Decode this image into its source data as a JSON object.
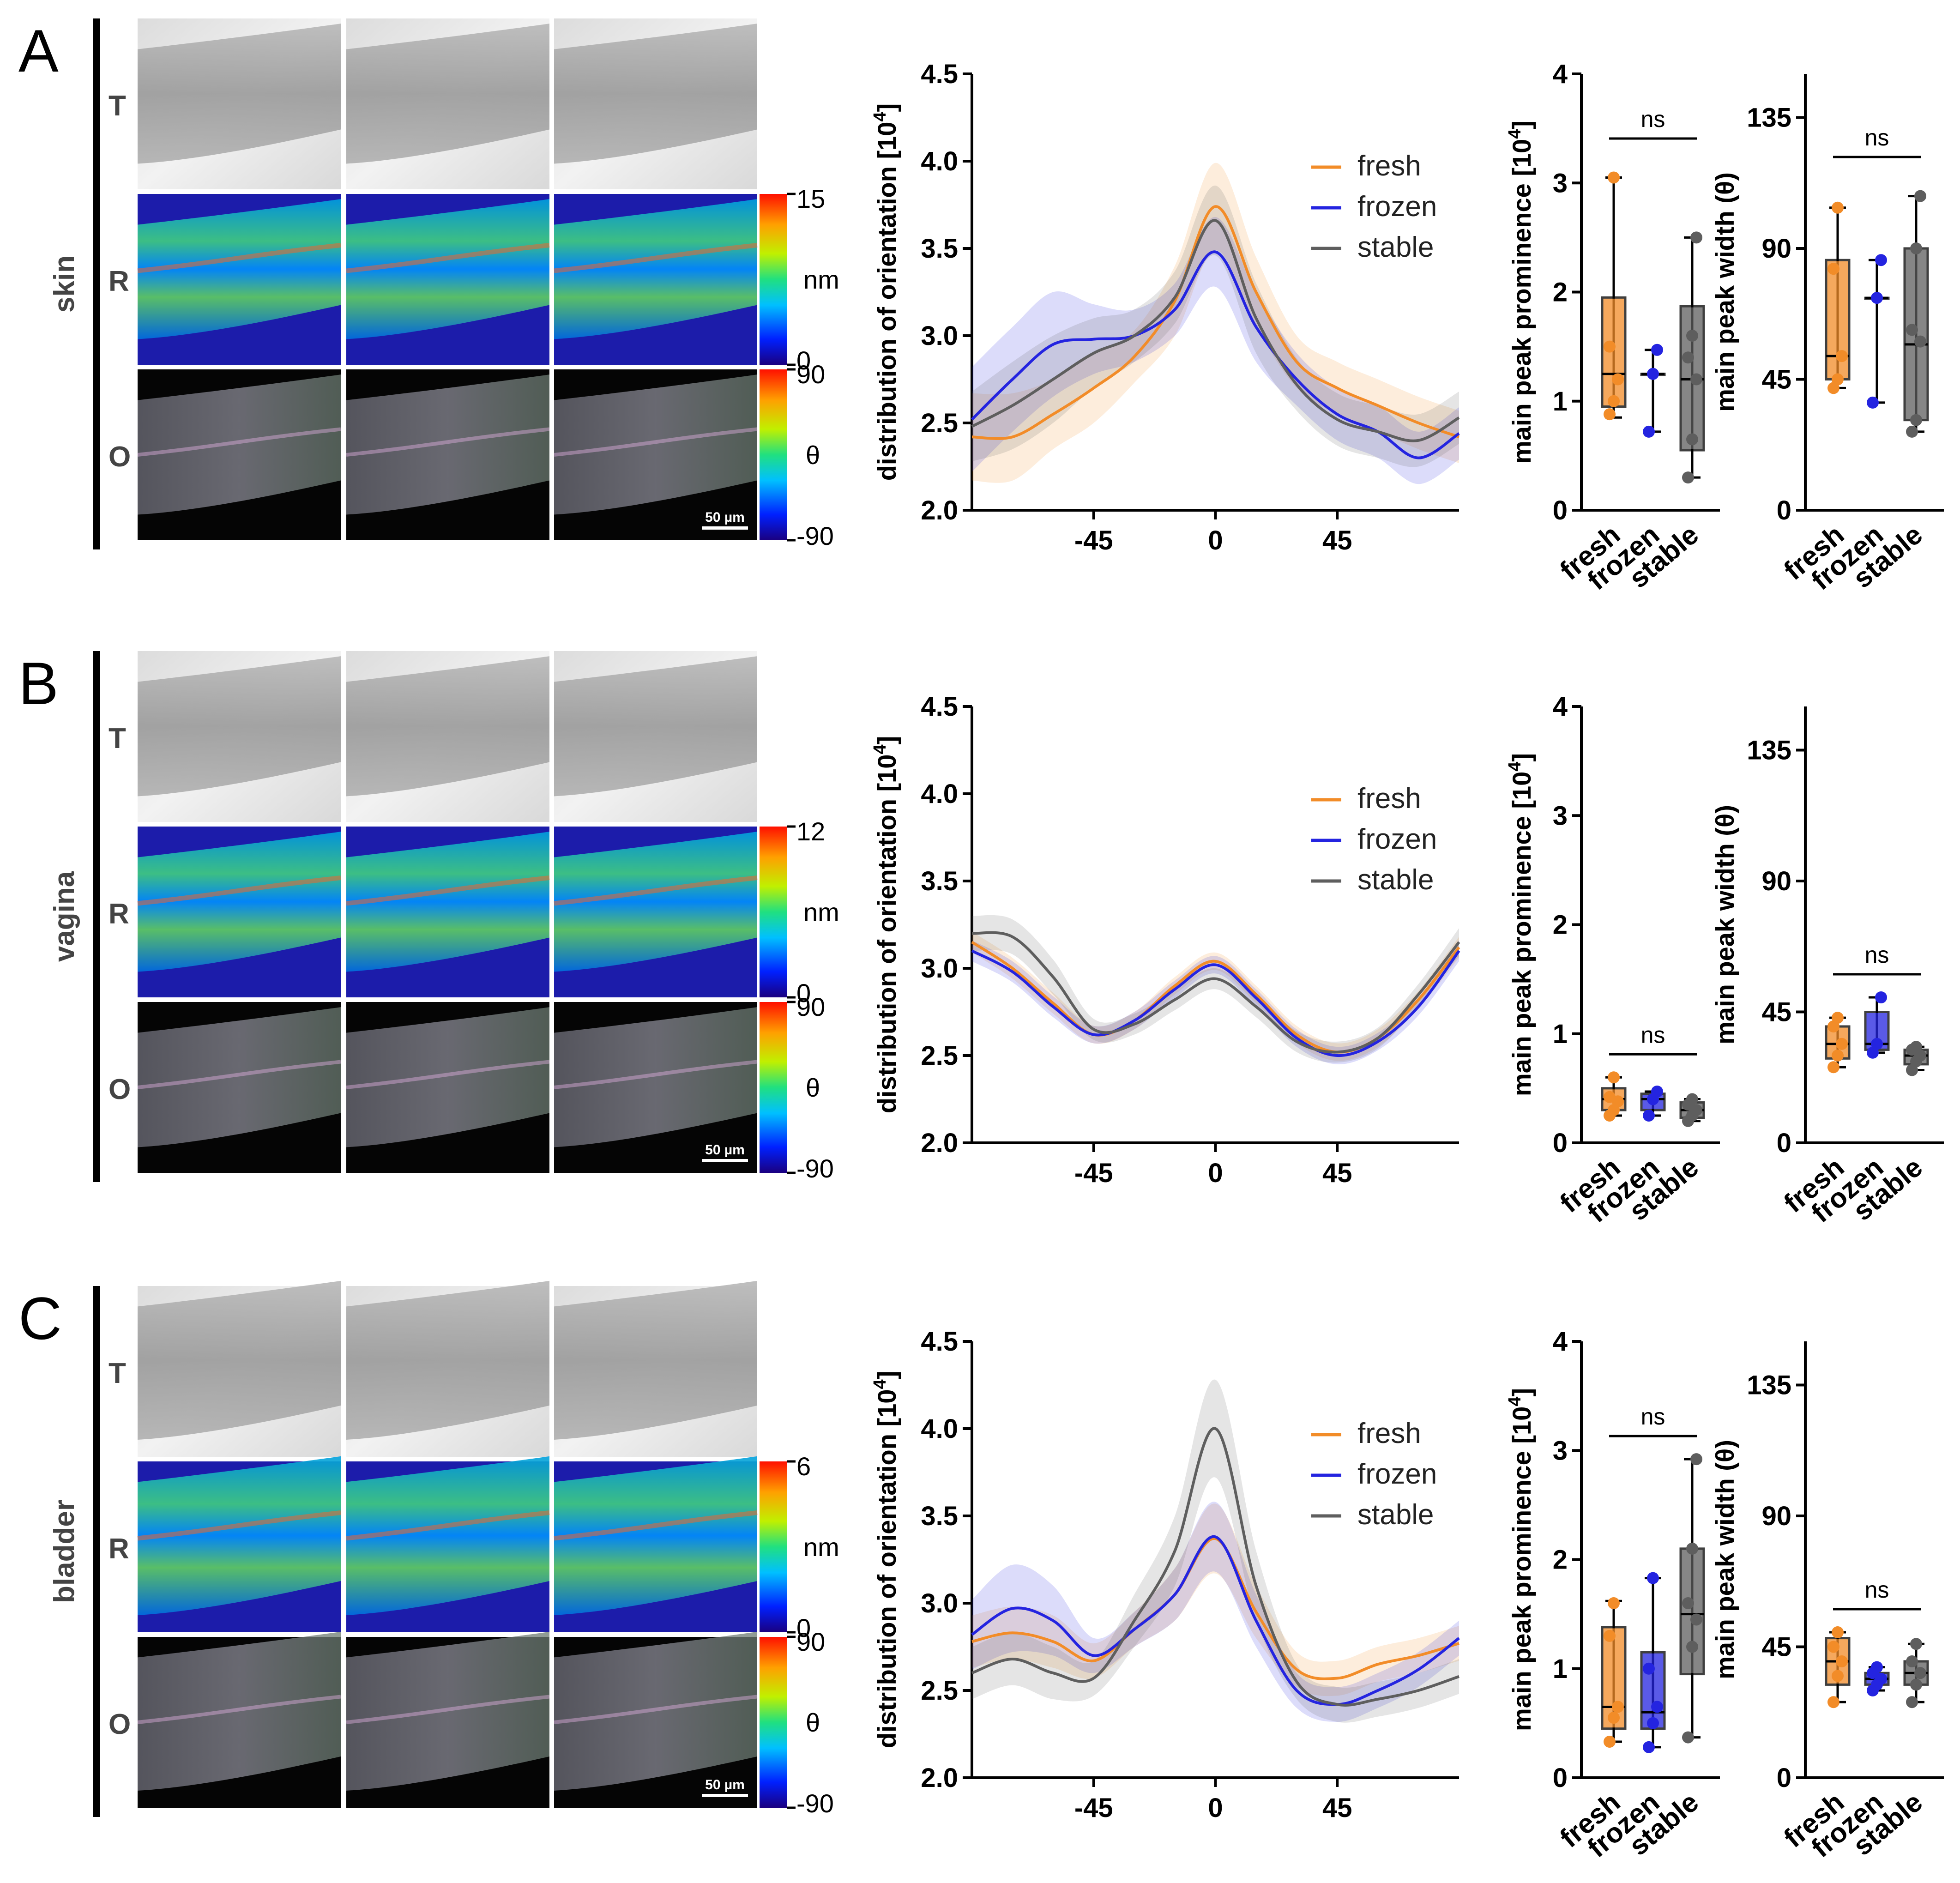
{
  "colors": {
    "fresh": "#F28C28",
    "frozen": "#2424E0",
    "stable": "#5E5E5E",
    "black": "#000000"
  },
  "shared": {
    "row_labels": [
      "T",
      "R",
      "O"
    ],
    "o_colorbar": {
      "top": "90",
      "unit": "θ",
      "bottom": "-90"
    },
    "r_unit": "nm",
    "scale_bar": "50 µm",
    "groups": [
      "fresh",
      "frozen",
      "stable"
    ],
    "line_ylabel": "distribution of orientation [10",
    "line_ylabel_sup": "4",
    "line_ylabel_close": "]",
    "prom_ylabel": "main peak prominence [10",
    "prom_ylabel_sup": "4",
    "prom_ylabel_close": "]",
    "width_ylabel": "main peak width (θ)",
    "ns": "ns"
  },
  "panels": [
    {
      "letter": "A",
      "tissue": "skin",
      "r_colorbar_top": "15",
      "r_colorbar_bottom": "0"
    },
    {
      "letter": "B",
      "tissue": "vagina",
      "r_colorbar_top": "12",
      "r_colorbar_bottom": "0"
    },
    {
      "letter": "C",
      "tissue": "bladder",
      "r_colorbar_top": "6",
      "r_colorbar_bottom": "0"
    }
  ],
  "chart_data": [
    {
      "panel": "A",
      "type": "line",
      "ylabel": "distribution of orientation [10^4]",
      "xlim": [
        -90,
        90
      ],
      "ylim": [
        2.0,
        4.5
      ],
      "xticks": [
        -45,
        0,
        45
      ],
      "yticks": [
        2.0,
        2.5,
        3.0,
        3.5,
        4.0,
        4.5
      ],
      "x": [
        -90,
        -75,
        -60,
        -45,
        -30,
        -15,
        0,
        15,
        30,
        45,
        60,
        75,
        90
      ],
      "series": [
        {
          "name": "fresh",
          "values": [
            2.42,
            2.42,
            2.55,
            2.7,
            2.88,
            3.2,
            3.74,
            3.25,
            2.85,
            2.7,
            2.6,
            2.5,
            2.42
          ],
          "band": [
            0.25,
            0.25,
            0.2,
            0.2,
            0.15,
            0.2,
            0.25,
            0.2,
            0.15,
            0.15,
            0.15,
            0.15,
            0.15
          ]
        },
        {
          "name": "frozen",
          "values": [
            2.52,
            2.75,
            2.95,
            2.98,
            3.0,
            3.15,
            3.48,
            3.05,
            2.75,
            2.55,
            2.45,
            2.3,
            2.44
          ],
          "band": [
            0.3,
            0.3,
            0.3,
            0.2,
            0.15,
            0.15,
            0.2,
            0.2,
            0.15,
            0.15,
            0.15,
            0.15,
            0.15
          ]
        },
        {
          "name": "stable",
          "values": [
            2.48,
            2.6,
            2.75,
            2.9,
            3.0,
            3.22,
            3.66,
            3.1,
            2.72,
            2.52,
            2.45,
            2.4,
            2.53
          ],
          "band": [
            0.2,
            0.25,
            0.25,
            0.2,
            0.15,
            0.15,
            0.2,
            0.2,
            0.15,
            0.15,
            0.15,
            0.15,
            0.15
          ]
        }
      ],
      "legend": [
        "fresh",
        "frozen",
        "stable"
      ]
    },
    {
      "panel": "A",
      "type": "box",
      "ylabel": "main peak prominence [10^4]",
      "ylim": [
        0,
        4
      ],
      "yticks": [
        0,
        1,
        2,
        3,
        4
      ],
      "ns": true,
      "groups": [
        {
          "name": "fresh",
          "min": 0.85,
          "q1": 0.95,
          "median": 1.25,
          "q3": 1.95,
          "max": 3.05,
          "points": [
            0.88,
            1.0,
            1.2,
            1.5,
            3.05
          ]
        },
        {
          "name": "frozen",
          "min": 0.72,
          "q1": 1.25,
          "median": 1.25,
          "q3": 1.25,
          "max": 1.47,
          "points": [
            0.72,
            1.25,
            1.47
          ]
        },
        {
          "name": "stable",
          "min": 0.3,
          "q1": 0.55,
          "median": 1.2,
          "q3": 1.87,
          "max": 2.5,
          "points": [
            0.3,
            0.65,
            1.2,
            1.4,
            1.6,
            2.5
          ]
        }
      ]
    },
    {
      "panel": "A",
      "type": "box",
      "ylabel": "main peak width (θ)",
      "ylim": [
        0,
        150
      ],
      "yticks": [
        0,
        45,
        90,
        135
      ],
      "ns": true,
      "groups": [
        {
          "name": "fresh",
          "min": 42,
          "q1": 45,
          "median": 53,
          "q3": 86,
          "max": 104,
          "points": [
            42,
            45,
            53,
            83,
            104
          ]
        },
        {
          "name": "frozen",
          "min": 37,
          "q1": 73,
          "median": 73,
          "q3": 73,
          "max": 86,
          "points": [
            37,
            73,
            86
          ]
        },
        {
          "name": "stable",
          "min": 27,
          "q1": 31,
          "median": 57,
          "q3": 90,
          "max": 108,
          "points": [
            27,
            31,
            58,
            62,
            90,
            108
          ]
        }
      ]
    },
    {
      "panel": "B",
      "type": "line",
      "ylabel": "distribution of orientation [10^4]",
      "xlim": [
        -90,
        90
      ],
      "ylim": [
        2.0,
        4.5
      ],
      "xticks": [
        -45,
        0,
        45
      ],
      "yticks": [
        2.0,
        2.5,
        3.0,
        3.5,
        4.0,
        4.5
      ],
      "x": [
        -90,
        -75,
        -60,
        -45,
        -30,
        -15,
        0,
        15,
        30,
        45,
        60,
        75,
        90
      ],
      "series": [
        {
          "name": "fresh",
          "values": [
            3.15,
            3.0,
            2.8,
            2.62,
            2.7,
            2.9,
            3.04,
            2.85,
            2.62,
            2.52,
            2.6,
            2.82,
            3.12
          ],
          "band": [
            0.06,
            0.06,
            0.06,
            0.05,
            0.05,
            0.05,
            0.05,
            0.05,
            0.05,
            0.05,
            0.05,
            0.05,
            0.06
          ]
        },
        {
          "name": "frozen",
          "values": [
            3.1,
            2.98,
            2.78,
            2.62,
            2.7,
            2.88,
            3.02,
            2.83,
            2.6,
            2.5,
            2.58,
            2.78,
            3.1
          ],
          "band": [
            0.06,
            0.06,
            0.06,
            0.05,
            0.05,
            0.05,
            0.05,
            0.05,
            0.05,
            0.05,
            0.05,
            0.05,
            0.06
          ]
        },
        {
          "name": "stable",
          "values": [
            3.2,
            3.18,
            2.95,
            2.65,
            2.68,
            2.82,
            2.94,
            2.78,
            2.58,
            2.52,
            2.6,
            2.85,
            3.15
          ],
          "band": [
            0.1,
            0.1,
            0.1,
            0.06,
            0.06,
            0.06,
            0.06,
            0.06,
            0.06,
            0.06,
            0.06,
            0.06,
            0.08
          ]
        }
      ],
      "legend": [
        "fresh",
        "frozen",
        "stable"
      ]
    },
    {
      "panel": "B",
      "type": "box",
      "ylabel": "main peak prominence [10^4]",
      "ylim": [
        0,
        4
      ],
      "yticks": [
        0,
        1,
        2,
        3,
        4
      ],
      "ns": true,
      "groups": [
        {
          "name": "fresh",
          "min": 0.25,
          "q1": 0.3,
          "median": 0.4,
          "q3": 0.5,
          "max": 0.6,
          "points": [
            0.25,
            0.3,
            0.38,
            0.42,
            0.6
          ]
        },
        {
          "name": "frozen",
          "min": 0.25,
          "q1": 0.3,
          "median": 0.4,
          "q3": 0.45,
          "max": 0.47,
          "points": [
            0.25,
            0.4,
            0.47
          ]
        },
        {
          "name": "stable",
          "min": 0.2,
          "q1": 0.23,
          "median": 0.3,
          "q3": 0.37,
          "max": 0.4,
          "points": [
            0.2,
            0.25,
            0.3,
            0.35,
            0.4
          ]
        }
      ]
    },
    {
      "panel": "B",
      "type": "box",
      "ylabel": "main peak width (θ)",
      "ylim": [
        0,
        150
      ],
      "yticks": [
        0,
        45,
        90,
        135
      ],
      "ns": true,
      "groups": [
        {
          "name": "fresh",
          "min": 26,
          "q1": 29,
          "median": 34,
          "q3": 40,
          "max": 43,
          "points": [
            26,
            30,
            34,
            40,
            43
          ]
        },
        {
          "name": "frozen",
          "min": 31,
          "q1": 32,
          "median": 34,
          "q3": 45,
          "max": 50,
          "points": [
            31,
            34,
            50
          ]
        },
        {
          "name": "stable",
          "min": 25,
          "q1": 27,
          "median": 30,
          "q3": 32,
          "max": 33,
          "points": [
            25,
            28,
            30,
            32,
            33
          ]
        }
      ]
    },
    {
      "panel": "C",
      "type": "line",
      "ylabel": "distribution of orientation [10^4]",
      "xlim": [
        -90,
        90
      ],
      "ylim": [
        2.0,
        4.5
      ],
      "xticks": [
        -45,
        0,
        45
      ],
      "yticks": [
        2.0,
        2.5,
        3.0,
        3.5,
        4.0,
        4.5
      ],
      "x": [
        -90,
        -75,
        -60,
        -45,
        -30,
        -15,
        0,
        15,
        30,
        45,
        60,
        75,
        90
      ],
      "series": [
        {
          "name": "fresh",
          "values": [
            2.78,
            2.83,
            2.78,
            2.67,
            2.85,
            3.05,
            3.37,
            2.95,
            2.62,
            2.57,
            2.65,
            2.7,
            2.77
          ],
          "band": [
            0.15,
            0.15,
            0.15,
            0.1,
            0.1,
            0.15,
            0.2,
            0.15,
            0.1,
            0.1,
            0.1,
            0.1,
            0.1
          ]
        },
        {
          "name": "frozen",
          "values": [
            2.82,
            2.97,
            2.9,
            2.7,
            2.85,
            3.05,
            3.38,
            2.9,
            2.5,
            2.42,
            2.5,
            2.62,
            2.8
          ],
          "band": [
            0.2,
            0.25,
            0.2,
            0.1,
            0.1,
            0.15,
            0.2,
            0.15,
            0.1,
            0.1,
            0.1,
            0.1,
            0.1
          ]
        },
        {
          "name": "stable",
          "values": [
            2.6,
            2.68,
            2.6,
            2.57,
            2.9,
            3.3,
            4.0,
            3.1,
            2.55,
            2.42,
            2.45,
            2.5,
            2.58
          ],
          "band": [
            0.15,
            0.15,
            0.15,
            0.1,
            0.15,
            0.2,
            0.28,
            0.2,
            0.1,
            0.1,
            0.1,
            0.1,
            0.1
          ]
        }
      ],
      "legend": [
        "fresh",
        "frozen",
        "stable"
      ]
    },
    {
      "panel": "C",
      "type": "box",
      "ylabel": "main peak prominence [10^4]",
      "ylim": [
        0,
        4
      ],
      "yticks": [
        0,
        1,
        2,
        3,
        4
      ],
      "ns": true,
      "groups": [
        {
          "name": "fresh",
          "min": 0.33,
          "q1": 0.45,
          "median": 0.65,
          "q3": 1.38,
          "max": 1.62,
          "points": [
            0.33,
            0.55,
            0.65,
            1.3,
            1.6
          ]
        },
        {
          "name": "frozen",
          "min": 0.28,
          "q1": 0.45,
          "median": 0.6,
          "q3": 1.15,
          "max": 1.83,
          "points": [
            0.28,
            0.5,
            0.65,
            1.0,
            1.83
          ]
        },
        {
          "name": "stable",
          "min": 0.37,
          "q1": 0.95,
          "median": 1.5,
          "q3": 2.1,
          "max": 2.92,
          "points": [
            0.37,
            1.2,
            1.45,
            1.6,
            2.1,
            2.92
          ]
        }
      ]
    },
    {
      "panel": "C",
      "type": "box",
      "ylabel": "main peak width (θ)",
      "ylim": [
        0,
        150
      ],
      "yticks": [
        0,
        45,
        90,
        135
      ],
      "ns": true,
      "groups": [
        {
          "name": "fresh",
          "min": 26,
          "q1": 32,
          "median": 40,
          "q3": 48,
          "max": 50,
          "points": [
            26,
            35,
            40,
            45,
            50
          ]
        },
        {
          "name": "frozen",
          "min": 30,
          "q1": 32,
          "median": 34,
          "q3": 36,
          "max": 38,
          "points": [
            30,
            32,
            34,
            36,
            38
          ]
        },
        {
          "name": "stable",
          "min": 26,
          "q1": 32,
          "median": 36,
          "q3": 40,
          "max": 46,
          "points": [
            26,
            32,
            36,
            40,
            46
          ]
        }
      ]
    }
  ]
}
